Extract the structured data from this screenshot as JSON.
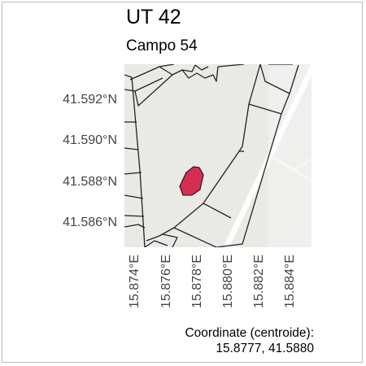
{
  "title": "UT 42",
  "subtitle": "Campo 54",
  "y_ticks": [
    "41.592°N",
    "41.590°N",
    "41.588°N",
    "41.586°N"
  ],
  "x_ticks": [
    "15.874°E",
    "15.876°E",
    "15.878°E",
    "15.880°E",
    "15.882°E",
    "15.884°E"
  ],
  "caption": {
    "label": "Coordinate (centroide):",
    "value": "15.8777, 41.5880"
  },
  "colors": {
    "field_fill": "#d42f52",
    "map_background": "#e9e9e6",
    "road_white": "#ffffff",
    "parcel_line": "#222222"
  }
}
